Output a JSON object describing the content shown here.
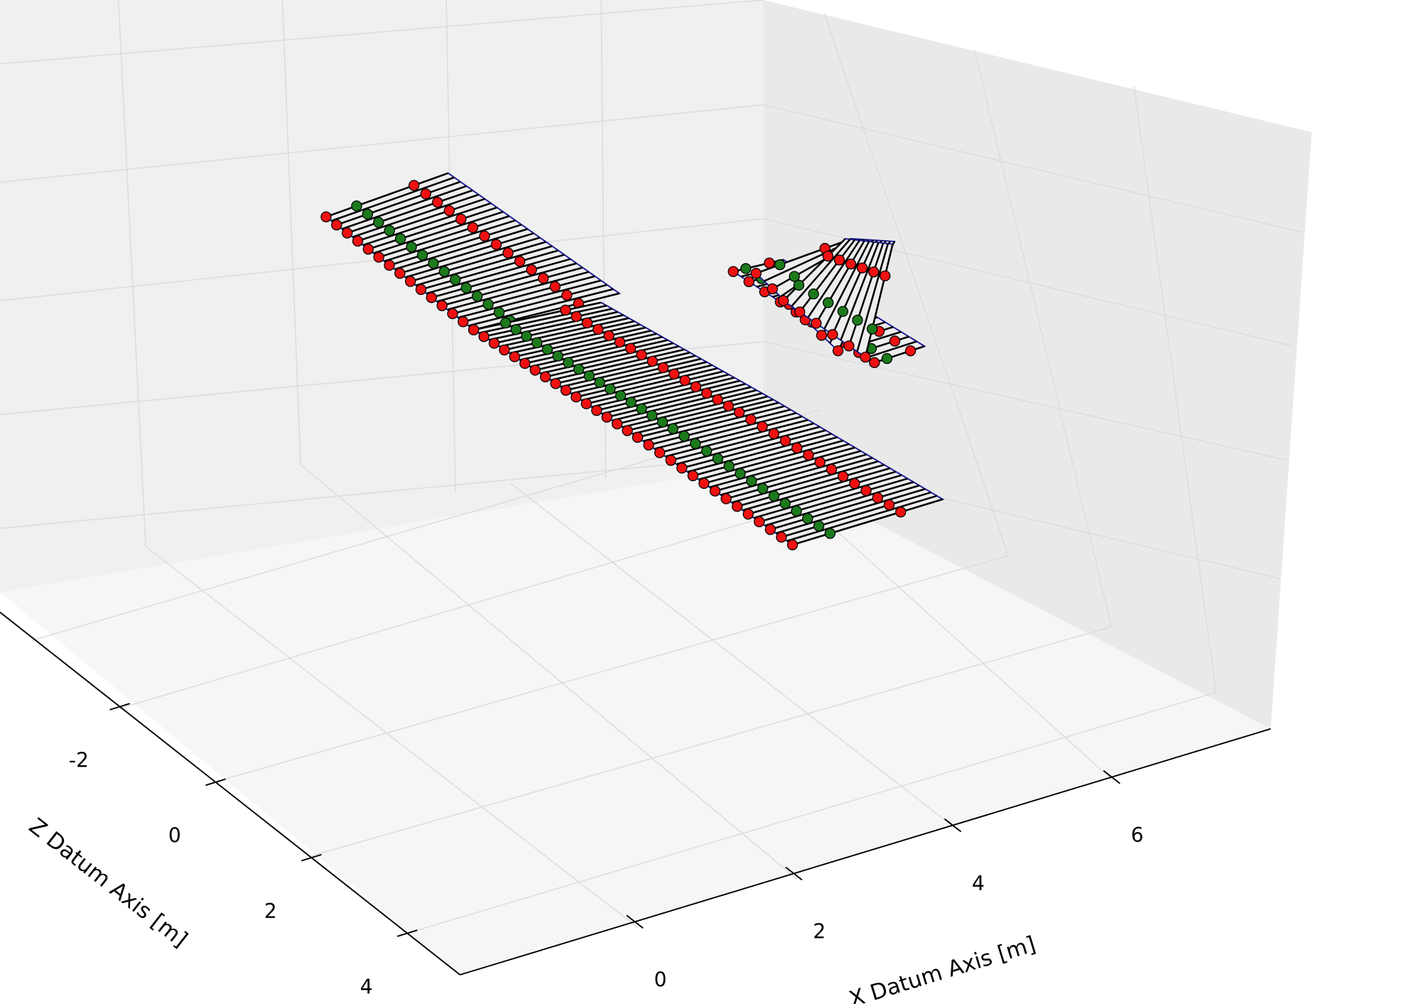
{
  "chart_data": {
    "type": "surface3d",
    "xlabel": "X Datum Axis [m]",
    "zlabel": "Z Datum Axis [m]",
    "xlim": [
      -2.2,
      8
    ],
    "xticks": [
      0,
      2,
      4,
      6
    ],
    "zlim": [
      -4.5,
      5.1
    ],
    "zticks": [
      -2,
      0,
      2,
      4
    ]
  }
}
